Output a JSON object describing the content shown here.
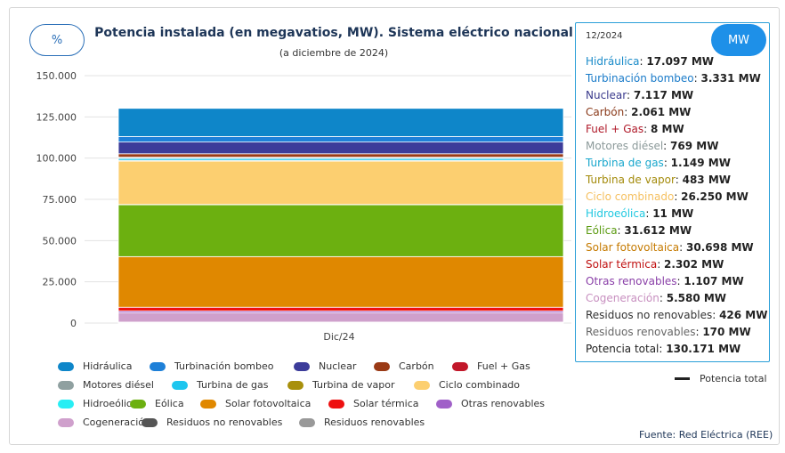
{
  "header": {
    "percent_button": "%",
    "title": "Potencia instalada (en megavatios, MW). Sistema eléctrico nacional",
    "subtitle": "(a diciembre de 2024)"
  },
  "tooltip": {
    "date": "12/2024",
    "mw_button": "MW",
    "rows": [
      {
        "label": "Hidráulica",
        "value": "17.097 MW",
        "color": "#1a8bc9"
      },
      {
        "label": "Turbinación bombeo",
        "value": "3.331 MW",
        "color": "#1a7bc9"
      },
      {
        "label": "Nuclear",
        "value": "7.117 MW",
        "color": "#3a3a8c"
      },
      {
        "label": "Carbón",
        "value": "2.061 MW",
        "color": "#8a3a1a"
      },
      {
        "label": "Fuel + Gas",
        "value": "8 MW",
        "color": "#b01a2a"
      },
      {
        "label": "Motores diésel",
        "value": "769 MW",
        "color": "#8c9a9a"
      },
      {
        "label": "Turbina de gas",
        "value": "1.149 MW",
        "color": "#17a6cc"
      },
      {
        "label": "Turbina de vapor",
        "value": "483 MW",
        "color": "#a38a0a"
      },
      {
        "label": "Ciclo combinado",
        "value": "26.250 MW",
        "color": "#f5c060"
      },
      {
        "label": "Hidroeólica",
        "value": "11 MW",
        "color": "#20c8e0"
      },
      {
        "label": "Eólica",
        "value": "31.612 MW",
        "color": "#5a9a10"
      },
      {
        "label": "Solar fotovoltaica",
        "value": "30.698 MW",
        "color": "#c57a00"
      },
      {
        "label": "Solar térmica",
        "value": "2.302 MW",
        "color": "#c01010"
      },
      {
        "label": "Otras renovables",
        "value": "1.107 MW",
        "color": "#8a40a8"
      },
      {
        "label": "Cogeneración",
        "value": "5.580 MW",
        "color": "#c890c0"
      },
      {
        "label": "Residuos no renovables",
        "value": "426 MW",
        "color": "#333333"
      },
      {
        "label": "Residuos renovables",
        "value": "170 MW",
        "color": "#666666"
      },
      {
        "label": "Potencia total",
        "value": "130.171 MW",
        "color": "#222222"
      }
    ]
  },
  "legend": {
    "items": [
      {
        "label": "Hidráulica",
        "color": "#0e86c9"
      },
      {
        "label": "Turbinación bombeo",
        "color": "#1e80d8"
      },
      {
        "label": "Nuclear",
        "color": "#3c3c9a"
      },
      {
        "label": "Carbón",
        "color": "#9a3a16"
      },
      {
        "label": "Fuel + Gas",
        "color": "#c2182a"
      },
      {
        "label": "Motores diésel",
        "color": "#8fa0a0"
      },
      {
        "label": "Turbina de gas",
        "color": "#1ec6ef"
      },
      {
        "label": "Turbina de vapor",
        "color": "#a8900c"
      },
      {
        "label": "Ciclo combinado",
        "color": "#fccf70"
      },
      {
        "label": "Hidroeólica",
        "color": "#28eef4"
      },
      {
        "label": "Eólica",
        "color": "#6cb010"
      },
      {
        "label": "Solar fotovoltaica",
        "color": "#e08800"
      },
      {
        "label": "Solar térmica",
        "color": "#ee1010"
      },
      {
        "label": "Otras renovables",
        "color": "#a060c8"
      },
      {
        "label": "Cogeneración",
        "color": "#cfa0cc"
      },
      {
        "label": "Residuos no renovables",
        "color": "#555555"
      },
      {
        "label": "Residuos renovables",
        "color": "#999999"
      }
    ],
    "total_label": "Potencia total"
  },
  "source": "Fuente: Red Eléctrica (REE)",
  "chart_data": {
    "type": "bar",
    "stacked": true,
    "categories": [
      "Dic/24"
    ],
    "y_ticks": [
      "0",
      "25.000",
      "50.000",
      "75.000",
      "100.000",
      "125.000",
      "150.000"
    ],
    "ylim": [
      0,
      150000
    ],
    "grid": true,
    "series": [
      {
        "name": "Residuos renovables",
        "values": [
          170
        ],
        "color": "#999999"
      },
      {
        "name": "Residuos no renovables",
        "values": [
          426
        ],
        "color": "#555555"
      },
      {
        "name": "Cogeneración",
        "values": [
          5580
        ],
        "color": "#cfa0cc"
      },
      {
        "name": "Otras renovables",
        "values": [
          1107
        ],
        "color": "#a060c8"
      },
      {
        "name": "Solar térmica",
        "values": [
          2302
        ],
        "color": "#ee1010"
      },
      {
        "name": "Solar fotovoltaica",
        "values": [
          30698
        ],
        "color": "#e08800"
      },
      {
        "name": "Eólica",
        "values": [
          31612
        ],
        "color": "#6cb010"
      },
      {
        "name": "Hidroeólica",
        "values": [
          11
        ],
        "color": "#28eef4"
      },
      {
        "name": "Ciclo combinado",
        "values": [
          26250
        ],
        "color": "#fccf70"
      },
      {
        "name": "Turbina de vapor",
        "values": [
          483
        ],
        "color": "#a8900c"
      },
      {
        "name": "Turbina de gas",
        "values": [
          1149
        ],
        "color": "#1ec6ef"
      },
      {
        "name": "Motores diésel",
        "values": [
          769
        ],
        "color": "#8fa0a0"
      },
      {
        "name": "Fuel + Gas",
        "values": [
          8
        ],
        "color": "#c2182a"
      },
      {
        "name": "Carbón",
        "values": [
          2061
        ],
        "color": "#9a3a16"
      },
      {
        "name": "Nuclear",
        "values": [
          7117
        ],
        "color": "#3c3c9a"
      },
      {
        "name": "Turbinación bombeo",
        "values": [
          3331
        ],
        "color": "#1e80d8"
      },
      {
        "name": "Hidráulica",
        "values": [
          17097
        ],
        "color": "#0e86c9"
      }
    ],
    "total": {
      "name": "Potencia total",
      "values": [
        130171
      ]
    }
  }
}
